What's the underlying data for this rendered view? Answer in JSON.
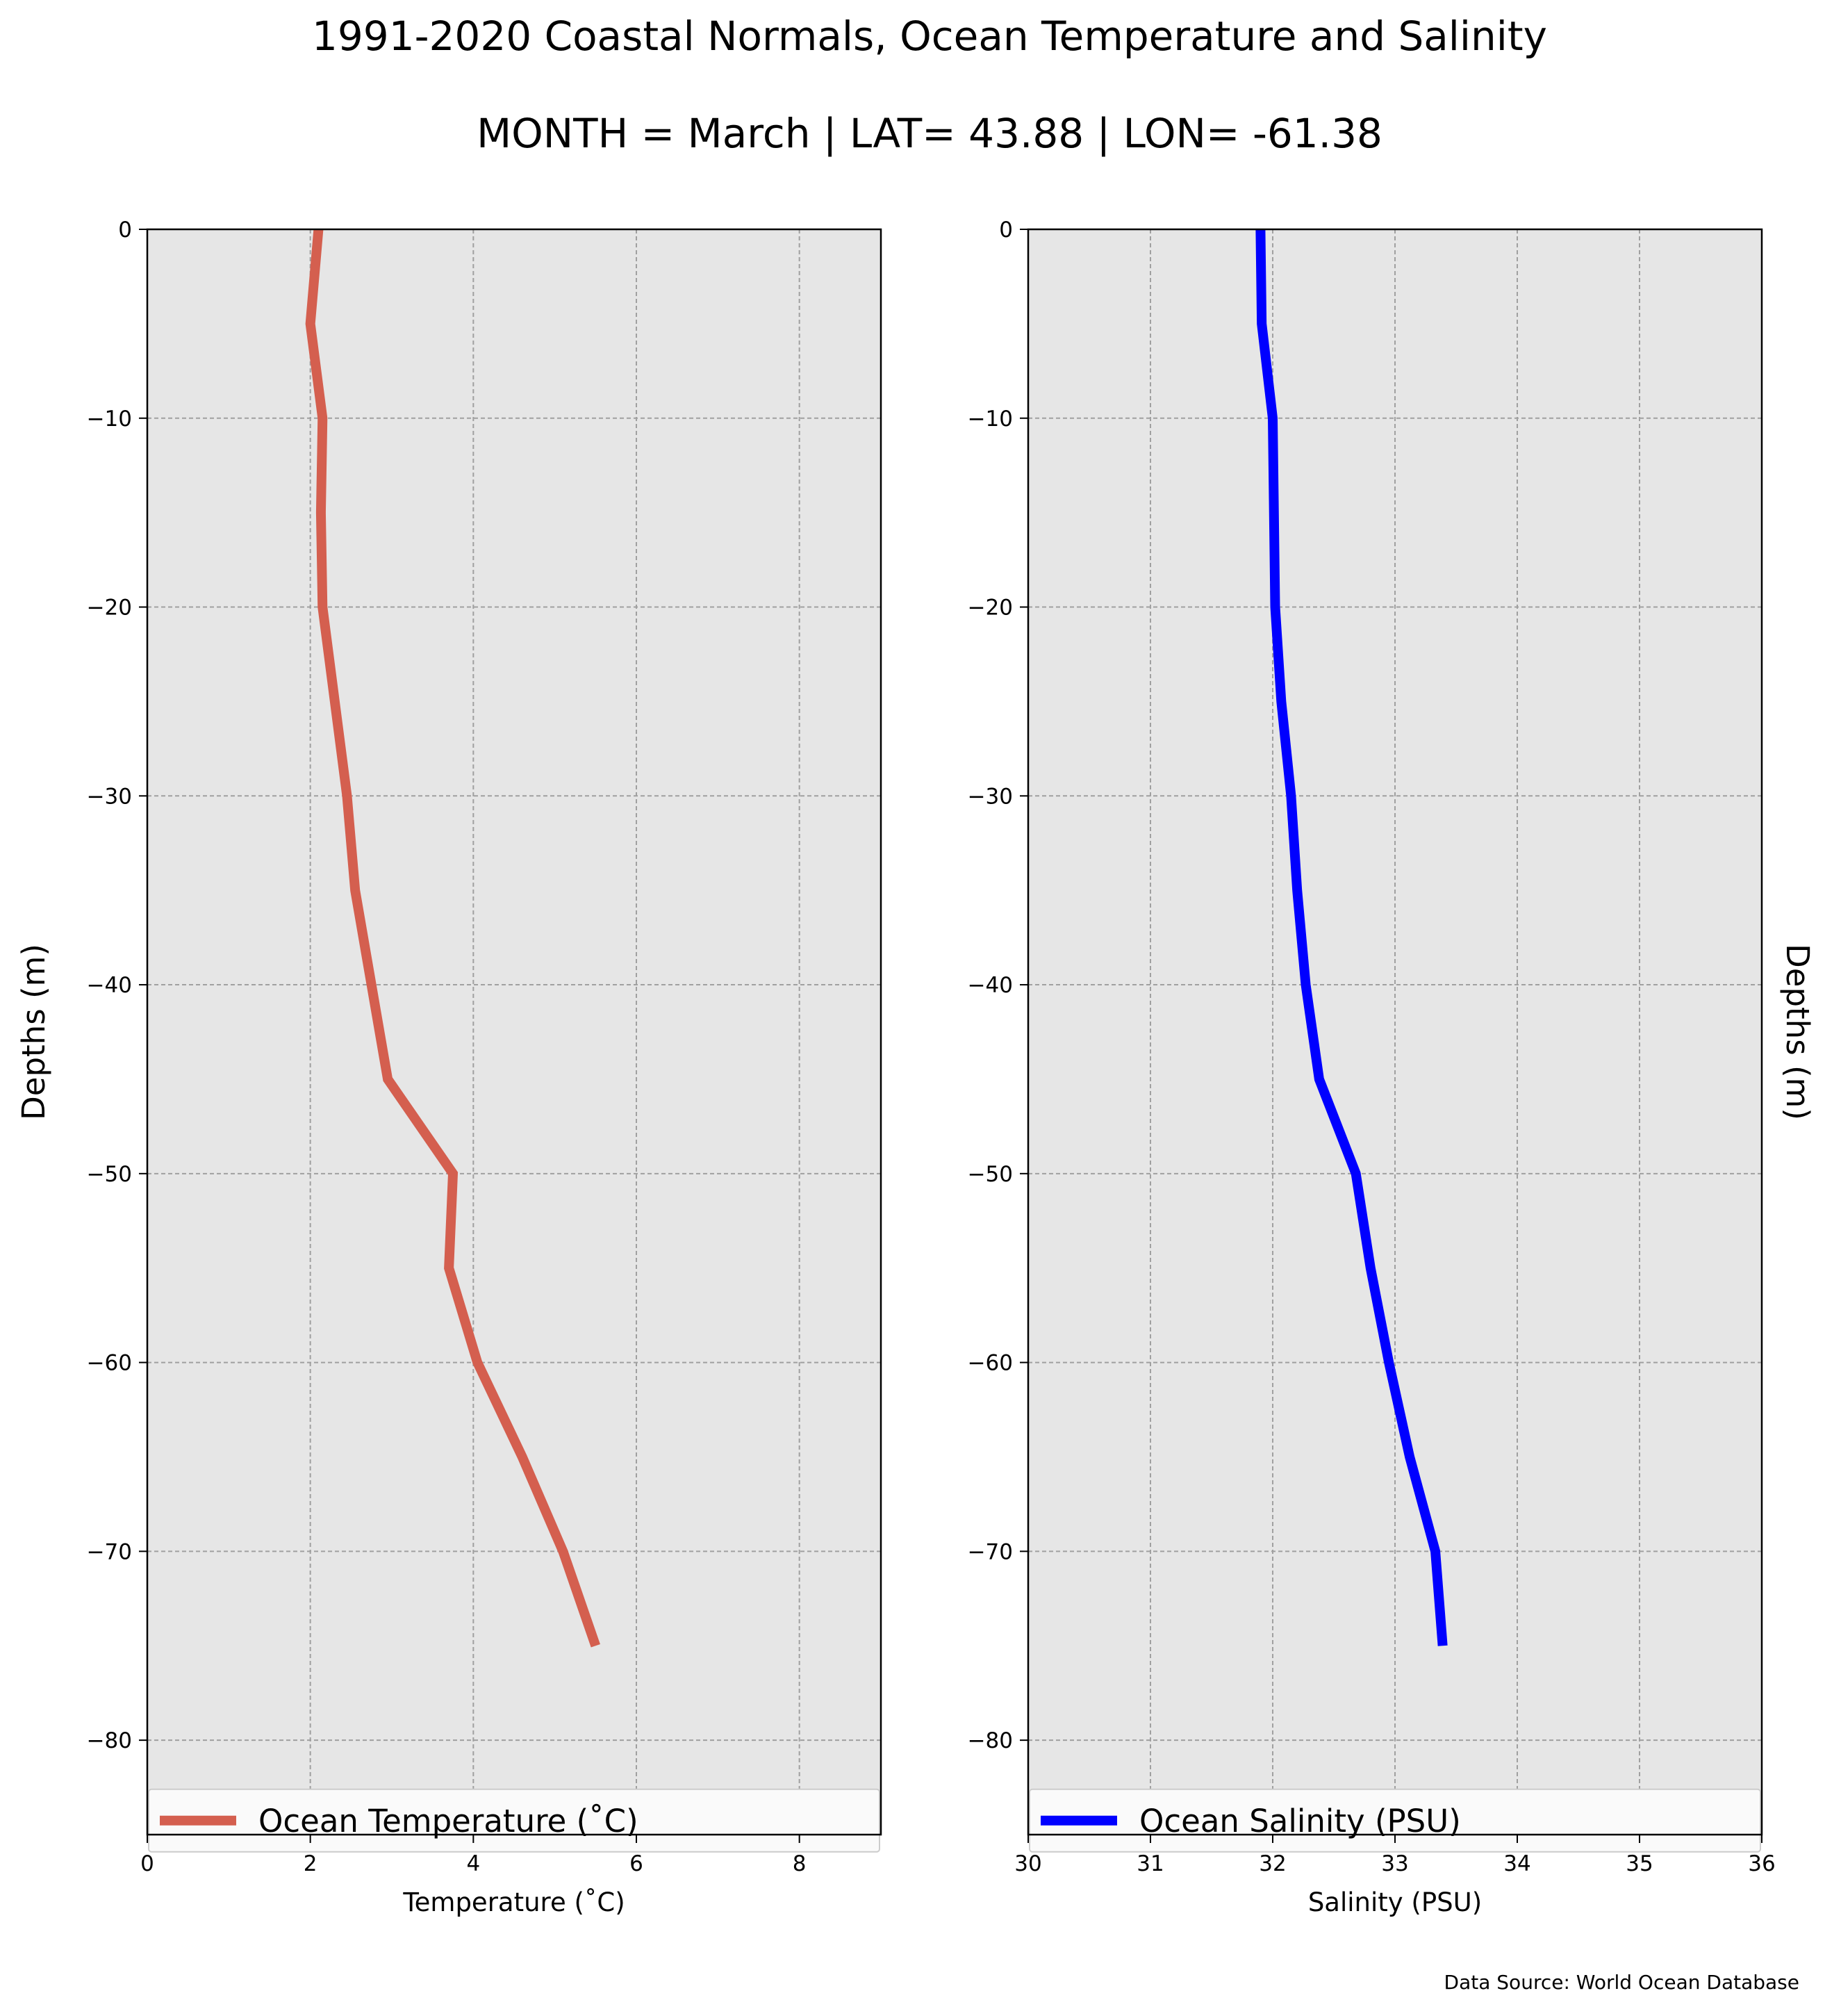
{
  "figure": {
    "title": "1991-2020 Coastal Normals, Ocean Temperature and Salinity",
    "subtitle": "MONTH = March | LAT= 43.88 | LON= -61.38",
    "source": "Data Source: World Ocean Database",
    "background_panel_color": "#e6e6e6"
  },
  "chart_data": [
    {
      "type": "line",
      "xlabel": "Temperature ($^\\circ$C)",
      "xlabel_display": "Temperature (˚C)",
      "ylabel": "Depths (m)",
      "xlim": [
        0,
        9
      ],
      "ylim": [
        -85,
        0
      ],
      "xticks": [
        0,
        2,
        4,
        6,
        8
      ],
      "xtick_labels": [
        "0",
        "2",
        "4",
        "6",
        "8"
      ],
      "yticks": [
        0,
        -10,
        -20,
        -30,
        -40,
        -50,
        -60,
        -70,
        -80
      ],
      "ytick_labels": [
        "0",
        "−10",
        "−20",
        "−30",
        "−40",
        "−50",
        "−60",
        "−70",
        "−80"
      ],
      "grid": true,
      "legend_position": "bottom",
      "series": [
        {
          "name": "Ocean Temperature (˚C)",
          "color": "#d45f4f",
          "x": [
            2.1,
            2.0,
            2.15,
            2.13,
            2.15,
            2.3,
            2.45,
            2.55,
            2.75,
            2.95,
            3.75,
            3.7,
            4.05,
            4.6,
            5.1,
            5.5
          ],
          "y": [
            0,
            -5,
            -10,
            -15,
            -20,
            -25,
            -30,
            -35,
            -40,
            -45,
            -50,
            -55,
            -60,
            -65,
            -70,
            -75
          ]
        }
      ]
    },
    {
      "type": "line",
      "xlabel": "Salinity (PSU)",
      "ylabel": "Depths (m)",
      "xlim": [
        30,
        36
      ],
      "ylim": [
        -85,
        0
      ],
      "xticks": [
        30,
        31,
        32,
        33,
        34,
        35,
        36
      ],
      "xtick_labels": [
        "30",
        "31",
        "32",
        "33",
        "34",
        "35",
        "36"
      ],
      "yticks": [
        0,
        -10,
        -20,
        -30,
        -40,
        -50,
        -60,
        -70,
        -80
      ],
      "ytick_labels": [
        "0",
        "−10",
        "−20",
        "−30",
        "−40",
        "−50",
        "−60",
        "−70",
        "−80"
      ],
      "grid": true,
      "legend_position": "bottom",
      "series": [
        {
          "name": "Ocean Salinity (PSU)",
          "color": "#0000ff",
          "x": [
            31.9,
            31.91,
            32.0,
            32.01,
            32.02,
            32.07,
            32.15,
            32.2,
            32.27,
            32.38,
            32.68,
            32.8,
            32.95,
            33.12,
            33.33,
            33.39
          ],
          "y": [
            0,
            -5,
            -10,
            -15,
            -20,
            -25,
            -30,
            -35,
            -40,
            -45,
            -50,
            -55,
            -60,
            -65,
            -70,
            -75
          ]
        }
      ]
    }
  ]
}
